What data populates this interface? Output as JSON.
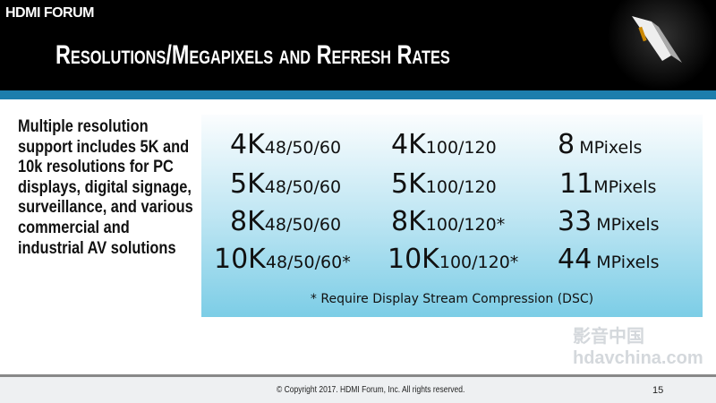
{
  "header": {
    "brand": "HDMI FORUM",
    "title": "Resolutions/Megapixels and Refresh Rates"
  },
  "left_text": "Multiple resolution support includes 5K and 10k resolutions for PC displays, digital signage, surveillance, and various commercial and industrial AV solutions",
  "table": {
    "rows": [
      {
        "res1": "4K",
        "rate1": "48/50/60",
        "res2": "4K",
        "rate2": "100/120",
        "mp": "8",
        "unit": "MPixels"
      },
      {
        "res1": "5K",
        "rate1": "48/50/60",
        "res2": "5K",
        "rate2": "100/120",
        "mp": "11",
        "unit": "MPixels"
      },
      {
        "res1": "8K",
        "rate1": "48/50/60",
        "res2": "8K",
        "rate2": "100/120*",
        "mp": "33",
        "unit": "MPixels"
      },
      {
        "res1": "10K",
        "rate1": "48/50/60*",
        "res2": "10K",
        "rate2": "100/120*",
        "mp": "44",
        "unit": "MPixels"
      }
    ],
    "footnote": "*  Require Display Stream Compression (DSC)"
  },
  "footer": {
    "copyright": "© Copyright 2017. HDMI Forum, Inc.  All rights reserved.",
    "page": "15"
  },
  "watermark": "影音中国 hdavchina.com",
  "colors": {
    "header": "#000000",
    "accent_bar": "#1c7eac",
    "box_bottom": "#7ccde6"
  }
}
